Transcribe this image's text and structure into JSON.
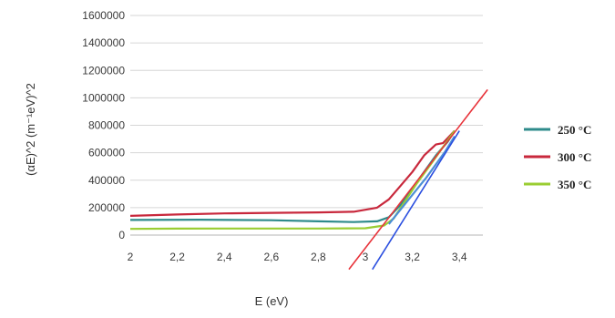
{
  "chart_data": {
    "type": "line",
    "title": "",
    "xlabel": "E (eV)",
    "ylabel": "(αE)^2 (m⁻¹eV)^2",
    "xlim": [
      2,
      3.5
    ],
    "ylim": [
      0,
      1600000
    ],
    "x_ticks": [
      2,
      2.2,
      2.4,
      2.6,
      2.8,
      3,
      3.2,
      3.4
    ],
    "x_tick_labels": [
      "2",
      "2,2",
      "2,4",
      "2,6",
      "2,8",
      "3",
      "3,2",
      "3,4"
    ],
    "y_ticks": [
      0,
      200000,
      400000,
      600000,
      800000,
      1000000,
      1200000,
      1400000,
      1600000
    ],
    "y_tick_labels": [
      "0",
      "200000",
      "400000",
      "600000",
      "800000",
      "1000000",
      "1200000",
      "1400000",
      "1600000"
    ],
    "grid": true,
    "legend_position": "right",
    "series": [
      {
        "name": "250 °C",
        "color": "#2e8b8b",
        "points": [
          [
            2,
            110000
          ],
          [
            2.3,
            112000
          ],
          [
            2.6,
            108000
          ],
          [
            2.8,
            100000
          ],
          [
            2.95,
            95000
          ],
          [
            3.05,
            100000
          ],
          [
            3.1,
            130000
          ],
          [
            3.15,
            220000
          ],
          [
            3.2,
            340000
          ],
          [
            3.25,
            460000
          ],
          [
            3.3,
            580000
          ],
          [
            3.35,
            680000
          ],
          [
            3.38,
            760000
          ]
        ]
      },
      {
        "name": "300 °C",
        "color": "#c8283c",
        "points": [
          [
            2,
            140000
          ],
          [
            2.2,
            150000
          ],
          [
            2.4,
            158000
          ],
          [
            2.6,
            162000
          ],
          [
            2.8,
            165000
          ],
          [
            2.95,
            170000
          ],
          [
            3.05,
            200000
          ],
          [
            3.1,
            260000
          ],
          [
            3.15,
            360000
          ],
          [
            3.2,
            460000
          ],
          [
            3.25,
            580000
          ],
          [
            3.3,
            660000
          ],
          [
            3.33,
            670000
          ],
          [
            3.38,
            760000
          ]
        ]
      },
      {
        "name": "350 °C",
        "color": "#9acd32",
        "points": [
          [
            2,
            45000
          ],
          [
            2.2,
            47000
          ],
          [
            2.4,
            48000
          ],
          [
            2.6,
            48000
          ],
          [
            2.8,
            48000
          ],
          [
            3.0,
            50000
          ],
          [
            3.08,
            70000
          ],
          [
            3.12,
            120000
          ],
          [
            3.17,
            250000
          ],
          [
            3.22,
            380000
          ],
          [
            3.28,
            520000
          ],
          [
            3.33,
            640000
          ],
          [
            3.38,
            760000
          ]
        ]
      },
      {
        "name": "",
        "color": "#4c8fd6",
        "points": [
          [
            3.1,
            80000
          ],
          [
            3.18,
            250000
          ],
          [
            3.26,
            420000
          ],
          [
            3.34,
            610000
          ],
          [
            3.38,
            720000
          ]
        ]
      }
    ],
    "tangent_lines": [
      {
        "color": "#e8333a",
        "from": [
          2.93,
          -250000
        ],
        "to": [
          3.52,
          1060000
        ]
      },
      {
        "color": "#2b4fe0",
        "from": [
          3.03,
          -250000
        ],
        "to": [
          3.4,
          760000
        ]
      }
    ]
  }
}
